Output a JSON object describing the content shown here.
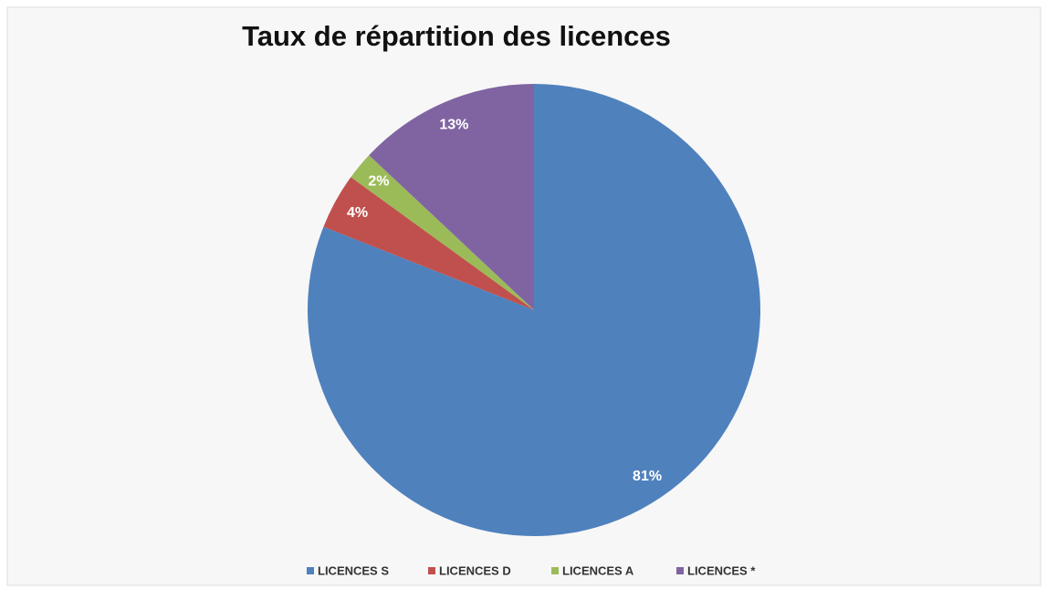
{
  "chart_data": {
    "type": "pie",
    "title": "Taux de répartition des licences",
    "categories": [
      "LICENCES S",
      "LICENCES D",
      "LICENCES A",
      "LICENCES *"
    ],
    "values": [
      81,
      4,
      2,
      13
    ],
    "value_labels": [
      "81%",
      "4%",
      "2%",
      "13%"
    ],
    "colors": [
      "#4f81bd",
      "#c0504d",
      "#9bbb59",
      "#8064a2"
    ],
    "legend": "bottom"
  }
}
